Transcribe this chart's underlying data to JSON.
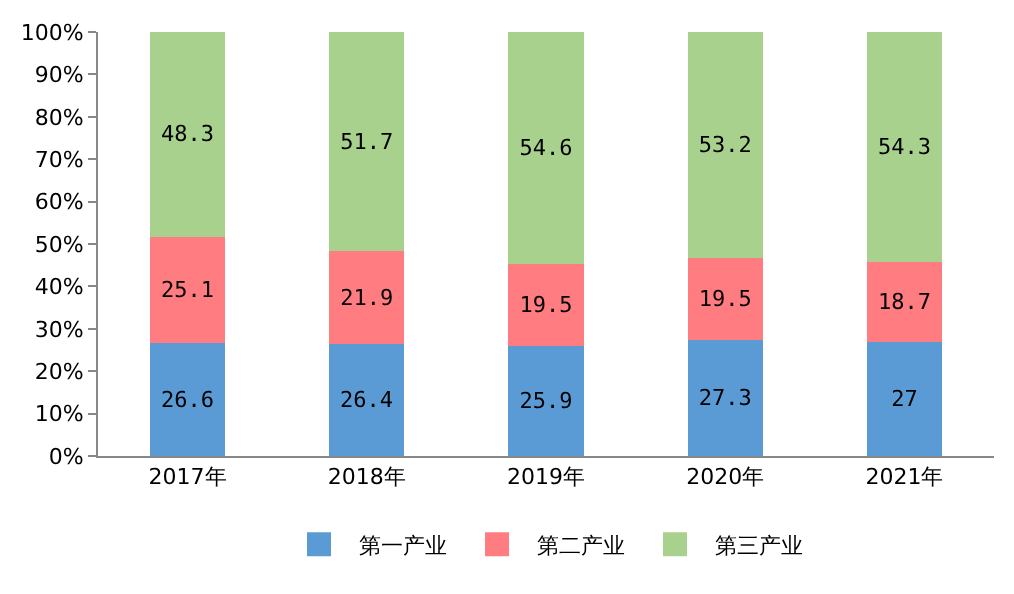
{
  "chart_data": {
    "type": "bar",
    "stacked": true,
    "categories": [
      "2017年",
      "2018年",
      "2019年",
      "2020年",
      "2021年"
    ],
    "series": [
      {
        "name": "第一产业",
        "color": "#5b9bd5",
        "values": [
          26.6,
          26.4,
          25.9,
          27.3,
          27
        ]
      },
      {
        "name": "第二产业",
        "color": "#ff7c80",
        "values": [
          25.1,
          21.9,
          19.5,
          19.5,
          18.7
        ]
      },
      {
        "name": "第三产业",
        "color": "#a9d18e",
        "values": [
          48.3,
          51.7,
          54.6,
          53.2,
          54.3
        ]
      }
    ],
    "ylim": [
      0,
      100
    ],
    "yticks": [
      {
        "value": 0,
        "label": "0%"
      },
      {
        "value": 10,
        "label": "10%"
      },
      {
        "value": 20,
        "label": "20%"
      },
      {
        "value": 30,
        "label": "30%"
      },
      {
        "value": 40,
        "label": "40%"
      },
      {
        "value": 50,
        "label": "50%"
      },
      {
        "value": 60,
        "label": "60%"
      },
      {
        "value": 70,
        "label": "70%"
      },
      {
        "value": 80,
        "label": "80%"
      },
      {
        "value": 90,
        "label": "90%"
      },
      {
        "value": 100,
        "label": "100%"
      }
    ],
    "data_labels": true,
    "legend": "bottom",
    "grid": false
  }
}
